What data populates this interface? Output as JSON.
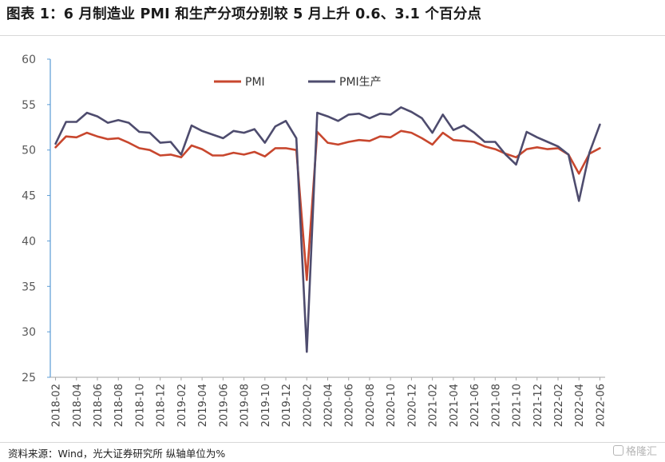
{
  "header": {
    "title": "图表 1：6 月制造业 PMI 和生产分项分别较 5 月上升 0.6、3.1 个百分点"
  },
  "footer": {
    "source": "资料来源：Wind，光大证券研究所    纵轴单位为%",
    "watermark": "格隆汇"
  },
  "chart_data": {
    "type": "line",
    "title": "",
    "xlabel": "",
    "ylabel": "",
    "ylim": [
      25,
      60
    ],
    "yticks": [
      25,
      30,
      35,
      40,
      45,
      50,
      55,
      60
    ],
    "grid": false,
    "legend_position": "top-center",
    "x": [
      "2018-02",
      "2018-03",
      "2018-04",
      "2018-05",
      "2018-06",
      "2018-07",
      "2018-08",
      "2018-09",
      "2018-10",
      "2018-11",
      "2018-12",
      "2019-01",
      "2019-02",
      "2019-03",
      "2019-04",
      "2019-05",
      "2019-06",
      "2019-07",
      "2019-08",
      "2019-09",
      "2019-10",
      "2019-11",
      "2019-12",
      "2020-01",
      "2020-02",
      "2020-03",
      "2020-04",
      "2020-05",
      "2020-06",
      "2020-07",
      "2020-08",
      "2020-09",
      "2020-10",
      "2020-11",
      "2020-12",
      "2021-01",
      "2021-02",
      "2021-03",
      "2021-04",
      "2021-05",
      "2021-06",
      "2021-07",
      "2021-08",
      "2021-09",
      "2021-10",
      "2021-11",
      "2021-12",
      "2022-01",
      "2022-02",
      "2022-03",
      "2022-04",
      "2022-05",
      "2022-06"
    ],
    "x_tick_labels": [
      "2018-02",
      "2018-04",
      "2018-06",
      "2018-08",
      "2018-10",
      "2018-12",
      "2019-02",
      "2019-04",
      "2019-06",
      "2019-08",
      "2019-10",
      "2019-12",
      "2020-02",
      "2020-04",
      "2020-06",
      "2020-08",
      "2020-10",
      "2020-12",
      "2021-02",
      "2021-04",
      "2021-06",
      "2021-08",
      "2021-10",
      "2021-12",
      "2022-02",
      "2022-04",
      "2022-06"
    ],
    "series": [
      {
        "name": "PMI",
        "color": "#C8472E",
        "values": [
          50.3,
          51.5,
          51.4,
          51.9,
          51.5,
          51.2,
          51.3,
          50.8,
          50.2,
          50.0,
          49.4,
          49.5,
          49.2,
          50.5,
          50.1,
          49.4,
          49.4,
          49.7,
          49.5,
          49.8,
          49.3,
          50.2,
          50.2,
          50.0,
          35.7,
          52.0,
          50.8,
          50.6,
          50.9,
          51.1,
          51.0,
          51.5,
          51.4,
          52.1,
          51.9,
          51.3,
          50.6,
          51.9,
          51.1,
          51.0,
          50.9,
          50.4,
          50.1,
          49.6,
          49.2,
          50.1,
          50.3,
          50.1,
          50.2,
          49.5,
          47.4,
          49.6,
          50.2
        ]
      },
      {
        "name": "PMI生产",
        "color": "#4E4C6E",
        "values": [
          50.7,
          53.1,
          53.1,
          54.1,
          53.7,
          53.0,
          53.3,
          53.0,
          52.0,
          51.9,
          50.8,
          50.9,
          49.5,
          52.7,
          52.1,
          51.7,
          51.3,
          52.1,
          51.9,
          52.3,
          50.8,
          52.6,
          53.2,
          51.3,
          27.8,
          54.1,
          53.7,
          53.2,
          53.9,
          54.0,
          53.5,
          54.0,
          53.9,
          54.7,
          54.2,
          53.5,
          51.9,
          53.9,
          52.2,
          52.7,
          51.9,
          50.9,
          50.9,
          49.5,
          48.4,
          52.0,
          51.4,
          50.9,
          50.4,
          49.5,
          44.4,
          49.7,
          52.8
        ]
      }
    ]
  }
}
